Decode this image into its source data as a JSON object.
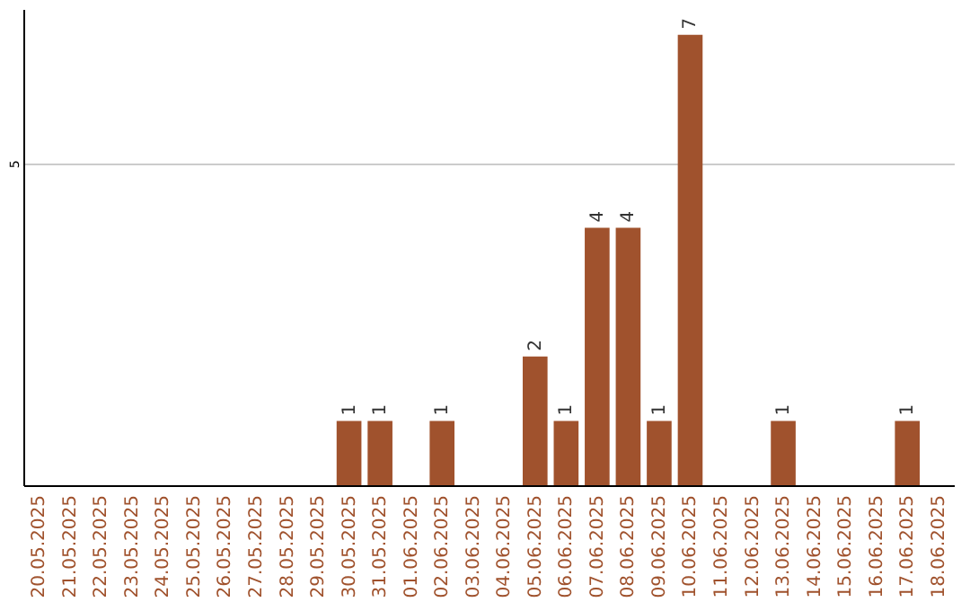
{
  "chart_data": {
    "type": "bar",
    "categories": [
      "20.05.2025",
      "21.05.2025",
      "22.05.2025",
      "23.05.2025",
      "24.05.2025",
      "25.05.2025",
      "26.05.2025",
      "27.05.2025",
      "28.05.2025",
      "29.05.2025",
      "30.05.2025",
      "31.05.2025",
      "01.06.2025",
      "02.06.2025",
      "03.06.2025",
      "04.06.2025",
      "05.06.2025",
      "06.06.2025",
      "07.06.2025",
      "08.06.2025",
      "09.06.2025",
      "10.06.2025",
      "11.06.2025",
      "12.06.2025",
      "13.06.2025",
      "14.06.2025",
      "15.06.2025",
      "16.06.2025",
      "17.06.2025",
      "18.06.2025"
    ],
    "values": [
      0,
      0,
      0,
      0,
      0,
      0,
      0,
      0,
      0,
      0,
      1,
      1,
      0,
      1,
      0,
      0,
      2,
      1,
      4,
      4,
      1,
      7,
      0,
      0,
      1,
      0,
      0,
      0,
      1,
      0
    ],
    "value_labels": [
      null,
      null,
      null,
      null,
      null,
      null,
      null,
      null,
      null,
      null,
      "1",
      "1",
      null,
      "1",
      null,
      null,
      "2",
      "1",
      "4",
      "4",
      "1",
      "7",
      null,
      null,
      "1",
      null,
      null,
      null,
      "1",
      null
    ],
    "color": "#a0522d",
    "ylim": [
      0,
      7.4
    ],
    "yticks": [
      5
    ],
    "grid": "y"
  }
}
